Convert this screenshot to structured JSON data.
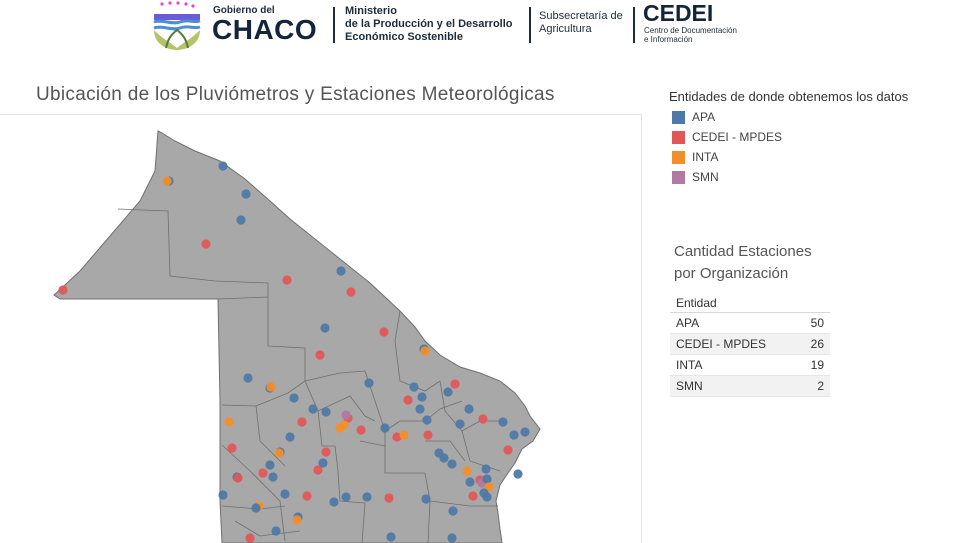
{
  "header": {
    "gov_small": "Gobierno del",
    "gov_big": "CHACO",
    "ministerio_lines": [
      "Ministerio",
      "de la Producción y el Desarrollo",
      "Económico Sostenible"
    ],
    "subsec_lines": [
      "Subsecretaría de",
      "Agricultura"
    ],
    "cedei_big": "CEDEI",
    "cedei_small_lines": [
      "Centro de Documentación",
      "e Información"
    ]
  },
  "map": {
    "title": "Ubicación de los Pluviómetros y Estaciones Meteorológicas",
    "fill_color": "#a8a8a8",
    "border_color": "#6f6f6f"
  },
  "legend": {
    "title": "Entidades de donde obtenemos los datos",
    "items": [
      {
        "label": "APA",
        "color": "#4e79a7"
      },
      {
        "label": "CEDEI - MPDES",
        "color": "#e15759"
      },
      {
        "label": "INTA",
        "color": "#f28e2b"
      },
      {
        "label": "SMN",
        "color": "#b07aa1"
      }
    ]
  },
  "counts": {
    "title_lines": [
      "Cantidad Estaciones",
      "por Organización"
    ],
    "header": "Entidad",
    "rows": [
      {
        "entity": "APA",
        "count": "50"
      },
      {
        "entity": "CEDEI - MPDES",
        "count": "26"
      },
      {
        "entity": "INTA",
        "count": "19"
      },
      {
        "entity": "SMN",
        "count": "2"
      }
    ]
  }
}
